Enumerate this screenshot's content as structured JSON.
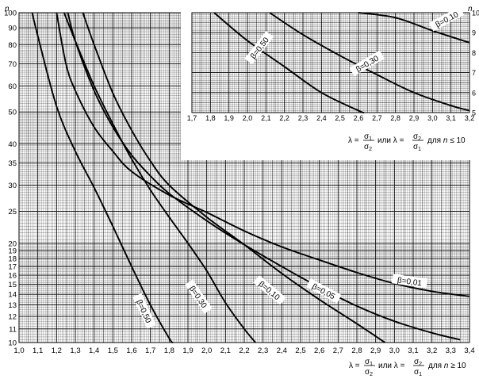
{
  "chart_data": [
    {
      "type": "line",
      "title": "",
      "x_axis": {
        "range": [
          1.0,
          3.4
        ],
        "ticks": [
          1.0,
          1.1,
          1.2,
          1.3,
          1.4,
          1.5,
          1.6,
          1.7,
          1.8,
          1.9,
          2.0,
          2.1,
          2.2,
          2.3,
          2.4,
          2.5,
          2.6,
          2.7,
          2.8,
          2.9,
          3.0,
          3.1,
          3.2,
          3.3,
          3.4
        ],
        "tick_labels": [
          "1,0",
          "1,1",
          "1,2",
          "1,3",
          "1,4",
          "1,5",
          "1,6",
          "1,7",
          "1,8",
          "1,9",
          "2,0",
          "2,1",
          "2,2",
          "2,3",
          "2,4",
          "2,5",
          "2,6",
          "2,7",
          "2,8",
          "2,9",
          "3,0",
          "3,1",
          "3,2",
          "3,3",
          "3,4"
        ],
        "label_text": "λ = σ1/σ2 или λ = σ2/σ1 для n ≥ 10",
        "label_cond": "≥"
      },
      "y_axis": {
        "scale": "log",
        "range": [
          10,
          100
        ],
        "name": "n",
        "ticks": [
          10,
          11,
          12,
          13,
          14,
          15,
          16,
          17,
          18,
          19,
          20,
          25,
          30,
          35,
          40,
          50,
          60,
          70,
          80,
          90,
          100
        ],
        "tick_labels": [
          "10",
          "11",
          "12",
          "13",
          "14",
          "15",
          "16",
          "17",
          "18",
          "19",
          "20",
          "25",
          "30",
          "35",
          "40",
          "50",
          "60",
          "70",
          "80",
          "90",
          "100"
        ]
      },
      "grid": true,
      "series": [
        {
          "name": "β=0,01",
          "label_text": "β=0,01",
          "points": [
            [
              1.2,
              100
            ],
            [
              1.25,
              70
            ],
            [
              1.3,
              58
            ],
            [
              1.4,
              45
            ],
            [
              1.5,
              38
            ],
            [
              1.6,
              33
            ],
            [
              1.8,
              28
            ],
            [
              2.0,
              24.8
            ],
            [
              2.2,
              21.8
            ],
            [
              2.4,
              19.5
            ],
            [
              2.6,
              17.8
            ],
            [
              2.8,
              16.3
            ],
            [
              3.0,
              15.1
            ],
            [
              3.2,
              14.3
            ],
            [
              3.4,
              13.8
            ]
          ]
        },
        {
          "name": "β=0,05",
          "label_text": "β=0,05",
          "points": [
            [
              1.26,
              100
            ],
            [
              1.3,
              82
            ],
            [
              1.4,
              58
            ],
            [
              1.5,
              45
            ],
            [
              1.6,
              37
            ],
            [
              1.7,
              32
            ],
            [
              1.8,
              28.3
            ],
            [
              2.0,
              23.4
            ],
            [
              2.2,
              19.8
            ],
            [
              2.4,
              17
            ],
            [
              2.6,
              14.7
            ],
            [
              2.8,
              12.9
            ],
            [
              3.0,
              11.6
            ],
            [
              3.2,
              10.7
            ],
            [
              3.35,
              10.2
            ]
          ]
        },
        {
          "name": "β=0,10",
          "label_text": "β=0,10",
          "points": [
            [
              1.34,
              100
            ],
            [
              1.4,
              80
            ],
            [
              1.5,
              57
            ],
            [
              1.6,
              44
            ],
            [
              1.7,
              35.5
            ],
            [
              1.8,
              30
            ],
            [
              2.0,
              24
            ],
            [
              2.2,
              19.8
            ],
            [
              2.4,
              16.2
            ],
            [
              2.6,
              13.5
            ],
            [
              2.8,
              11.4
            ],
            [
              2.95,
              10
            ]
          ]
        },
        {
          "name": "β=0,30",
          "label_text": "β=0,30",
          "points": [
            [
              1.24,
              100
            ],
            [
              1.3,
              82
            ],
            [
              1.4,
              60
            ],
            [
              1.5,
              46
            ],
            [
              1.6,
              36
            ],
            [
              1.7,
              29
            ],
            [
              1.8,
              24
            ],
            [
              1.9,
              20
            ],
            [
              2.0,
              16.5
            ],
            [
              2.1,
              13.2
            ],
            [
              2.2,
              11
            ],
            [
              2.26,
              10
            ]
          ]
        },
        {
          "name": "β=0,50",
          "label_text": "β=0,50",
          "points": [
            [
              1.07,
              100
            ],
            [
              1.1,
              85
            ],
            [
              1.2,
              52
            ],
            [
              1.3,
              38
            ],
            [
              1.4,
              29.5
            ],
            [
              1.5,
              22.5
            ],
            [
              1.6,
              17
            ],
            [
              1.7,
              13
            ],
            [
              1.8,
              10.3
            ],
            [
              1.82,
              10
            ]
          ]
        }
      ]
    },
    {
      "type": "line",
      "title": "",
      "x_axis": {
        "range": [
          1.7,
          3.2
        ],
        "ticks": [
          1.7,
          1.8,
          1.9,
          2.0,
          2.1,
          2.2,
          2.3,
          2.4,
          2.5,
          2.6,
          2.7,
          2.8,
          2.9,
          3.0,
          3.1,
          3.2
        ],
        "tick_labels": [
          "1,7",
          "1,8",
          "1,9",
          "2,0",
          "2,1",
          "2,2",
          "2,3",
          "2,4",
          "2,5",
          "2,6",
          "2,7",
          "2,8",
          "2,9",
          "3,0",
          "3,1",
          "3,2"
        ],
        "label_text": "λ = σ1/σ2 или λ = σ2/σ1 для n ≤ 10",
        "label_cond": "≤"
      },
      "y_axis": {
        "scale": "linear",
        "range": [
          5,
          10
        ],
        "name": "n",
        "ticks": [
          5,
          6,
          7,
          8,
          9,
          10
        ],
        "tick_labels": [
          "5",
          "6",
          "7",
          "8",
          "9",
          "10"
        ]
      },
      "grid": true,
      "series": [
        {
          "name": "β=0,10",
          "label_text": "β=0,10",
          "points": [
            [
              2.6,
              10
            ],
            [
              2.8,
              9.75
            ],
            [
              3.0,
              9.1
            ],
            [
              3.2,
              8.5
            ]
          ]
        },
        {
          "name": "β=0,30",
          "label_text": "β=0,30",
          "points": [
            [
              2.12,
              10
            ],
            [
              2.3,
              8.9
            ],
            [
              2.5,
              7.85
            ],
            [
              2.7,
              6.9
            ],
            [
              2.9,
              6.0
            ],
            [
              3.1,
              5.35
            ],
            [
              3.2,
              5.1
            ]
          ]
        },
        {
          "name": "β=0,50",
          "label_text": "β=0,50",
          "points": [
            [
              1.82,
              10
            ],
            [
              2.0,
              8.6
            ],
            [
              2.2,
              7.3
            ],
            [
              2.4,
              6.0
            ],
            [
              2.6,
              5.1
            ],
            [
              2.63,
              5.0
            ]
          ]
        }
      ]
    }
  ]
}
